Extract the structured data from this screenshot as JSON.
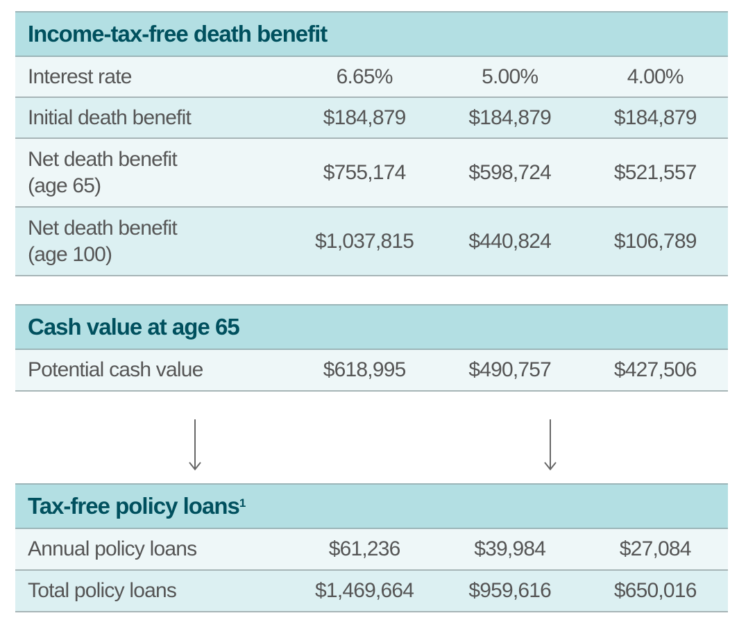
{
  "sections": [
    {
      "title": "Income-tax-free death benefit",
      "rows": [
        {
          "label": "Interest rate",
          "values": [
            "6.65%",
            "5.00%",
            "4.00%"
          ]
        },
        {
          "label": "Initial death benefit",
          "values": [
            "$184,879",
            "$184,879",
            "$184,879"
          ]
        },
        {
          "label": "Net death benefit",
          "label2": "(age 65)",
          "values": [
            "$755,174",
            "$598,724",
            "$521,557"
          ]
        },
        {
          "label": "Net death benefit",
          "label2": "(age 100)",
          "values": [
            "$1,037,815",
            "$440,824",
            "$106,789"
          ]
        }
      ]
    },
    {
      "title": "Cash value at age 65",
      "rows": [
        {
          "label": "Potential cash value",
          "values": [
            "$618,995",
            "$490,757",
            "$427,506"
          ]
        }
      ]
    },
    {
      "title": "Tax-free policy loans",
      "footnote": "1",
      "rows": [
        {
          "label": "Annual policy loans",
          "values": [
            "$61,236",
            "$39,984",
            "$27,084"
          ]
        },
        {
          "label": "Total policy loans",
          "values": [
            "$1,469,664",
            "$959,616",
            "$650,016"
          ]
        }
      ]
    }
  ],
  "colors": {
    "header_bg": "#b3dfe3",
    "header_text": "#00505e",
    "row_light": "#eef7f8",
    "row_dark": "#dcf0f2",
    "text": "#555555"
  }
}
